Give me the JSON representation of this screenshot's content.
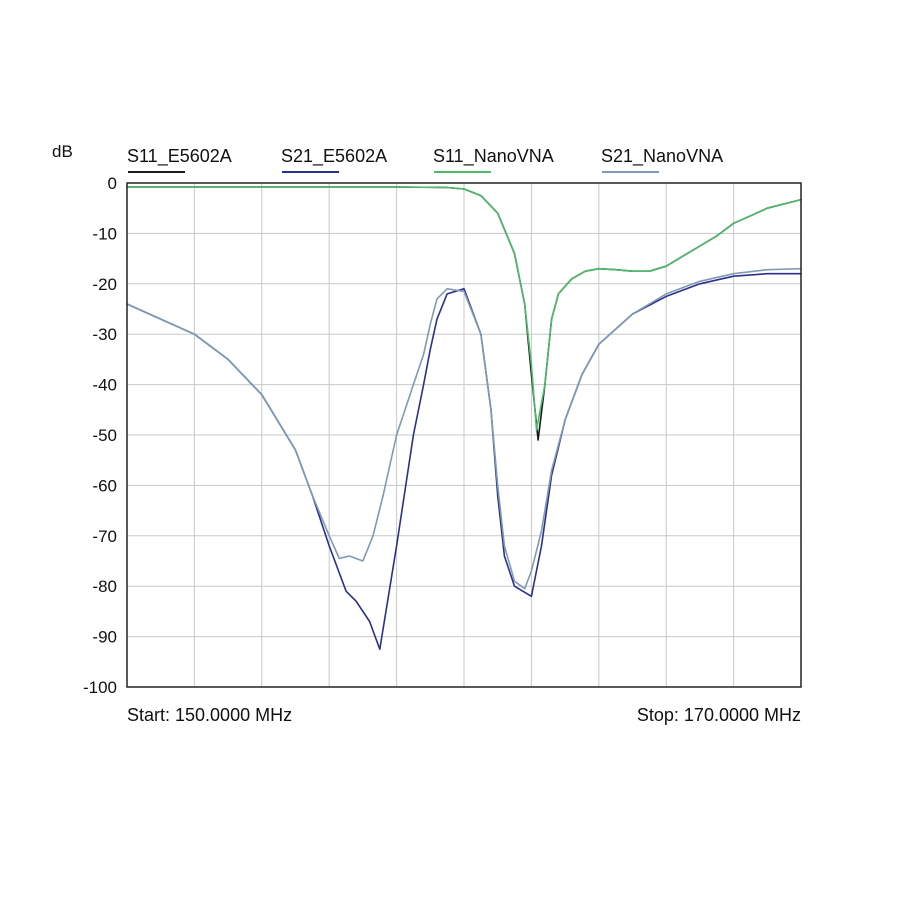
{
  "chart_data": {
    "type": "line",
    "ylabel": "dB",
    "ylim": [
      -100,
      0
    ],
    "xlim": [
      150,
      170
    ],
    "x_unit": "MHz",
    "yticks": [
      0,
      -10,
      -20,
      -30,
      -40,
      -50,
      -60,
      -70,
      -80,
      -90,
      -100
    ],
    "x_grid_divisions": 10,
    "grid": true,
    "legend_position": "top",
    "start_label": "Start: 150.0000 MHz",
    "stop_label": "Stop: 170.0000 MHz",
    "series": [
      {
        "name": "S11_E5602A",
        "color": "#1a1a1a",
        "x": [
          150,
          152,
          154,
          156,
          158,
          159.5,
          160,
          160.5,
          161,
          161.5,
          161.8,
          162,
          162.2,
          162.4,
          162.6,
          162.8,
          163.2,
          163.6,
          164,
          164.5,
          165,
          165.5,
          166,
          166.5,
          167,
          167.5,
          168,
          168.5,
          169,
          170
        ],
        "values": [
          -0.8,
          -0.8,
          -0.8,
          -0.8,
          -0.8,
          -0.9,
          -1.2,
          -2.5,
          -6,
          -14,
          -24,
          -38,
          -51,
          -40,
          -27,
          -22,
          -19,
          -17.5,
          -17,
          -17.2,
          -17.5,
          -17.5,
          -16.5,
          -14.5,
          -12.5,
          -10.5,
          -8,
          -6.5,
          -5,
          -3.3
        ]
      },
      {
        "name": "S21_E5602A",
        "color": "#2b2f8f",
        "x": [
          150,
          151,
          152,
          153,
          154,
          155,
          155.5,
          156,
          156.5,
          156.8,
          157.2,
          157.5,
          158,
          158.5,
          158.8,
          159,
          159.2,
          159.5,
          160,
          160.5,
          160.8,
          161,
          161.2,
          161.5,
          162,
          162.3,
          162.6,
          163,
          163.5,
          164,
          165,
          166,
          167,
          168,
          169,
          170
        ],
        "values": [
          -24,
          -27,
          -30,
          -35,
          -42,
          -53,
          -62,
          -72,
          -81,
          -83,
          -87,
          -92.5,
          -72,
          -50,
          -40,
          -33,
          -27,
          -22,
          -21,
          -30,
          -45,
          -62,
          -74,
          -80,
          -82,
          -72,
          -58,
          -47,
          -38,
          -32,
          -26,
          -22.5,
          -20,
          -18.5,
          -18,
          -18
        ]
      },
      {
        "name": "S11_NanoVNA",
        "color": "#4dbb6b",
        "x": [
          150,
          152,
          154,
          156,
          158,
          159.5,
          160,
          160.5,
          161,
          161.5,
          161.8,
          162,
          162.15,
          162.4,
          162.6,
          162.8,
          163.2,
          163.6,
          164,
          164.5,
          165,
          165.5,
          166,
          166.5,
          167,
          167.5,
          168,
          168.5,
          169,
          170
        ],
        "values": [
          -0.8,
          -0.8,
          -0.8,
          -0.8,
          -0.8,
          -0.9,
          -1.2,
          -2.5,
          -6,
          -14,
          -24,
          -36,
          -49,
          -40,
          -27,
          -22,
          -19,
          -17.5,
          -17,
          -17.2,
          -17.5,
          -17.5,
          -16.5,
          -14.5,
          -12.5,
          -10.5,
          -8,
          -6.5,
          -5,
          -3.3
        ]
      },
      {
        "name": "S21_NanoVNA",
        "color": "#7f9ab3",
        "x": [
          150,
          151,
          152,
          153,
          154,
          155,
          155.5,
          156,
          156.3,
          156.6,
          157,
          157.3,
          157.6,
          158,
          158.5,
          158.8,
          159,
          159.2,
          159.5,
          160,
          160.5,
          160.8,
          161,
          161.2,
          161.5,
          161.8,
          162,
          162.3,
          162.6,
          163,
          163.5,
          164,
          165,
          166,
          167,
          168,
          169,
          170
        ],
        "values": [
          -24,
          -27,
          -30,
          -35,
          -42,
          -53,
          -62,
          -70,
          -74.5,
          -74,
          -75,
          -70,
          -62,
          -50,
          -40,
          -34,
          -28,
          -23,
          -21,
          -21.5,
          -30,
          -45,
          -60,
          -72,
          -79,
          -80.5,
          -77,
          -69,
          -57,
          -47,
          -38,
          -32,
          -26,
          -22,
          -19.5,
          -18,
          -17.2,
          -17
        ]
      }
    ]
  }
}
